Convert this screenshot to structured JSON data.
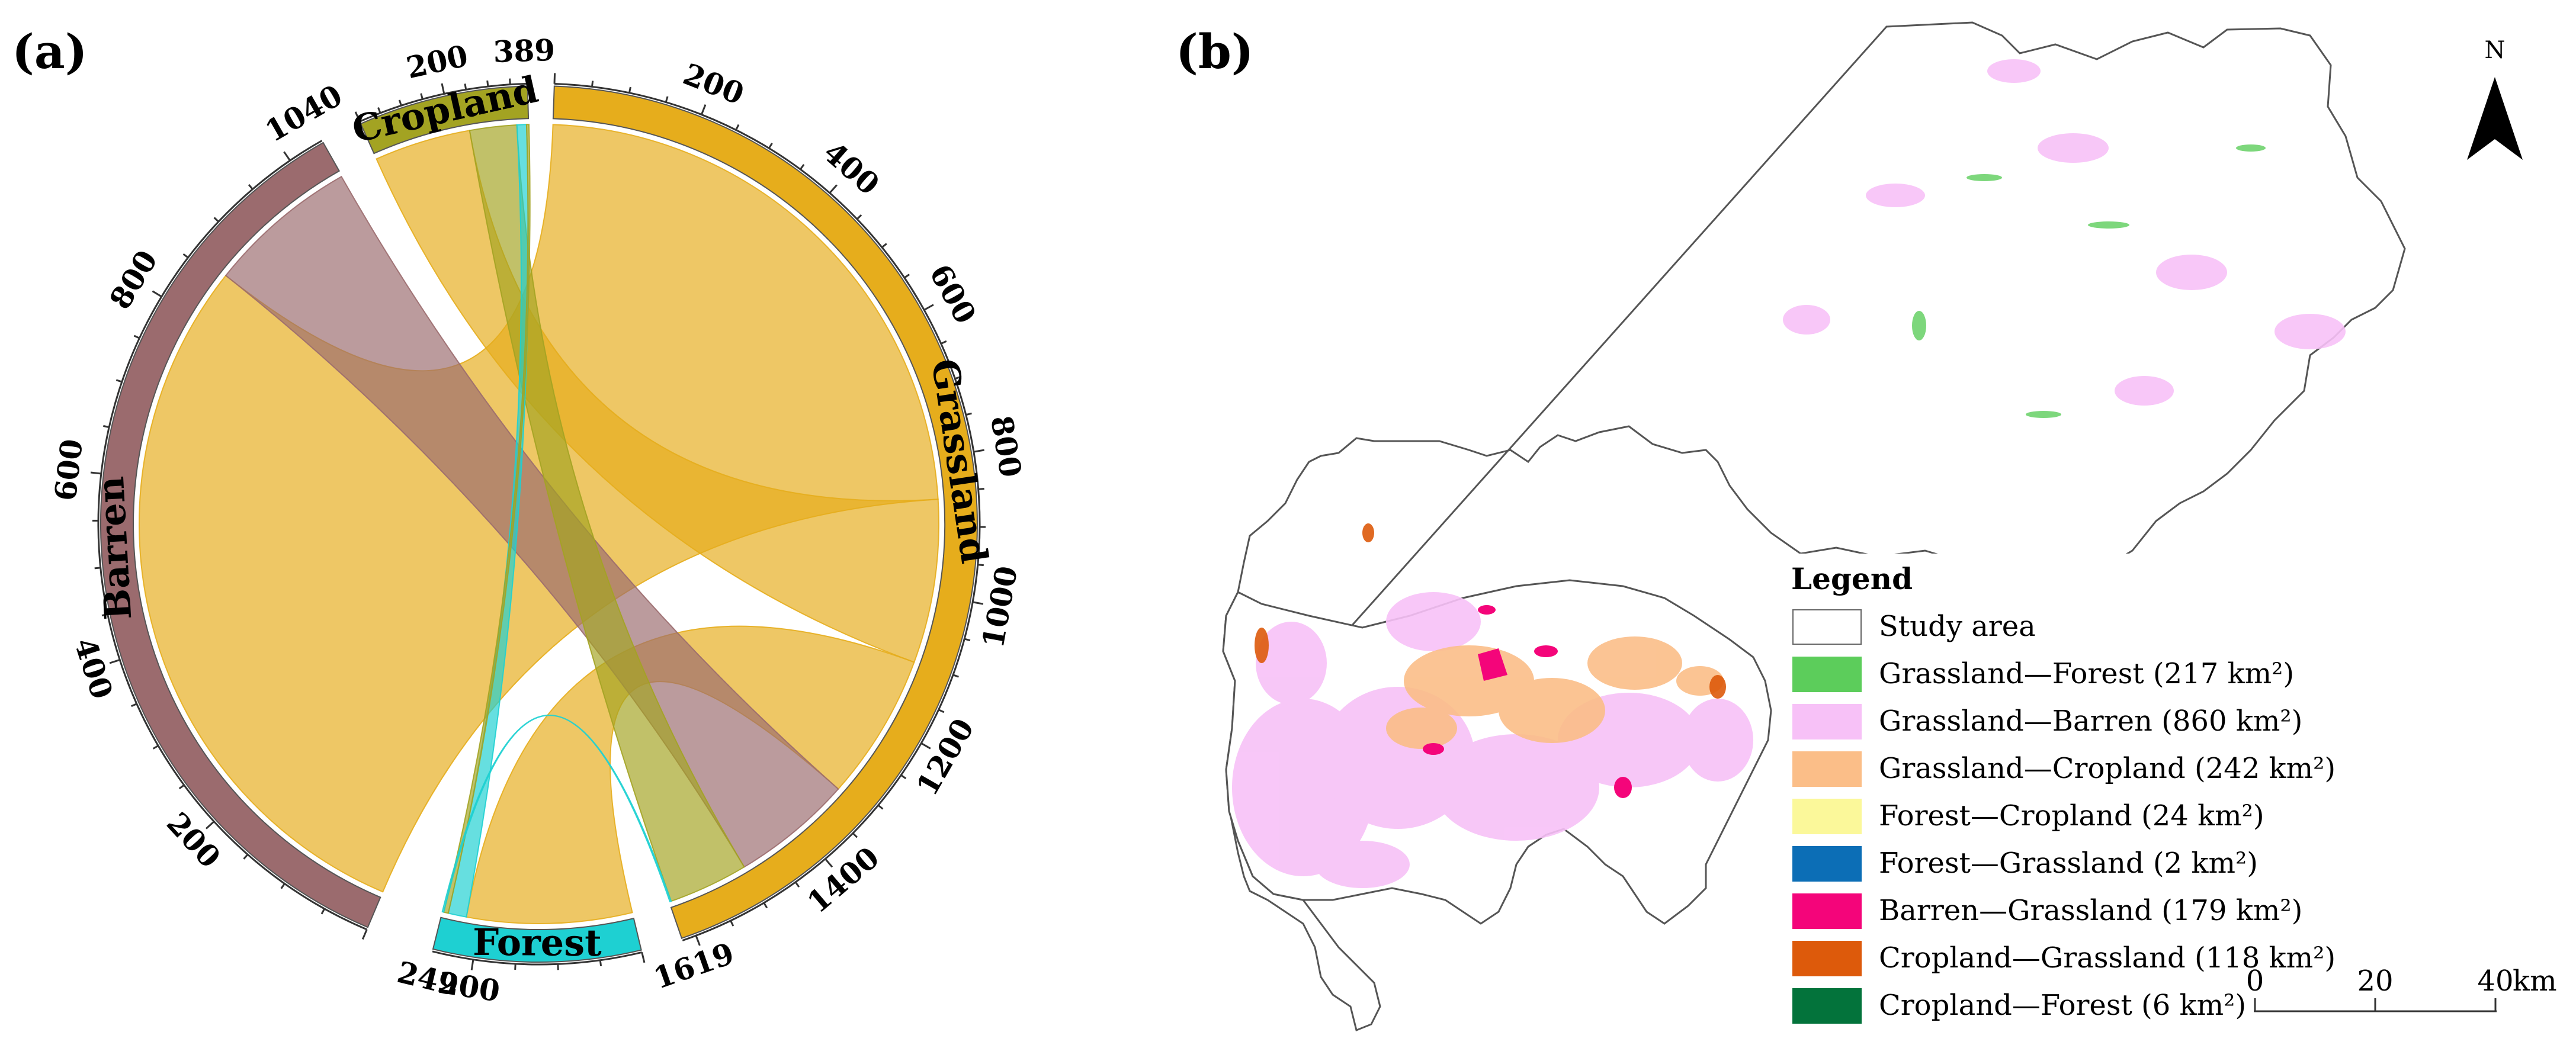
{
  "panels": {
    "a": "(a)",
    "b": "(b)"
  },
  "chart_data": [
    {
      "type": "chord",
      "groups": [
        {
          "name": "Grassland",
          "total": 1619,
          "color": "#e6ad1c",
          "ticks": [
            "200",
            "400",
            "600",
            "800",
            "1000",
            "1200",
            "1400"
          ],
          "end_label": "1619"
        },
        {
          "name": "Forest",
          "total": 249,
          "color": "#1ed0d2",
          "ticks": [
            "200"
          ],
          "end_label": "249"
        },
        {
          "name": "Barren",
          "total": 1040,
          "color": "#9b6b6e",
          "ticks": [
            "200",
            "400",
            "600",
            "800"
          ],
          "end_label": "1040"
        },
        {
          "name": "Cropland",
          "total": 389,
          "color": "#a3a322",
          "ticks": [
            "200"
          ],
          "end_label": "389"
        }
      ],
      "flows": [
        {
          "from": "Grassland",
          "to": "Barren",
          "value": 860
        },
        {
          "from": "Grassland",
          "to": "Cropland",
          "value": 242
        },
        {
          "from": "Grassland",
          "to": "Forest",
          "value": 217
        },
        {
          "from": "Barren",
          "to": "Grassland",
          "value": 179
        },
        {
          "from": "Cropland",
          "to": "Grassland",
          "value": 118
        },
        {
          "from": "Forest",
          "to": "Cropland",
          "value": 24
        },
        {
          "from": "Cropland",
          "to": "Forest",
          "value": 6
        },
        {
          "from": "Forest",
          "to": "Grassland",
          "value": 2
        }
      ]
    },
    {
      "type": "map",
      "legend": {
        "title": "Legend",
        "items": [
          {
            "label": "Study area",
            "color": "#ffffff"
          },
          {
            "label": "Grassland—Forest (217 km²)",
            "color": "#5ccd5b"
          },
          {
            "label": "Grassland—Barren (860 km²)",
            "color": "#f7c1f7"
          },
          {
            "label": "Grassland—Cropland (242 km²)",
            "color": "#fbbe88"
          },
          {
            "label": "Forest—Cropland (24 km²)",
            "color": "#fbf89a"
          },
          {
            "label": "Forest—Grassland (2 km²)",
            "color": "#0c6eb6"
          },
          {
            "label": "Barren—Grassland (179 km²)",
            "color": "#f4057a"
          },
          {
            "label": "Cropland—Grassland (118 km²)",
            "color": "#dd5a0b"
          },
          {
            "label": "Cropland—Forest (6 km²)",
            "color": "#03733b"
          }
        ]
      },
      "scale": {
        "ticks": [
          "0",
          "20",
          "40"
        ],
        "unit": "km"
      },
      "north": "N"
    }
  ]
}
